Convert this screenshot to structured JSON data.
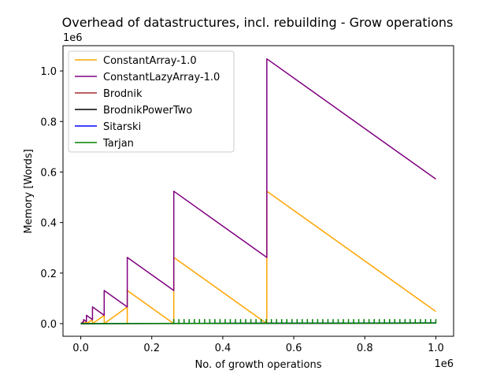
{
  "chart_data": {
    "type": "line",
    "title": "Overhead of datastructures, incl. rebuilding - Grow operations",
    "xlabel": "No. of growth operations",
    "ylabel": "Memory [Words]",
    "x_offset_label": "1e6",
    "y_offset_label": "1e6",
    "xlim": [
      -0.05,
      1.05
    ],
    "ylim": [
      -0.05,
      1.1
    ],
    "x_ticks": [
      0.0,
      0.2,
      0.4,
      0.6,
      0.8,
      1.0
    ],
    "x_tick_labels": [
      "0.0",
      "0.2",
      "0.4",
      "0.6",
      "0.8",
      "1.0"
    ],
    "y_ticks": [
      0.0,
      0.2,
      0.4,
      0.6,
      0.8,
      1.0
    ],
    "y_tick_labels": [
      "0.0",
      "0.2",
      "0.4",
      "0.6",
      "0.8",
      "1.0"
    ],
    "grid": false,
    "legend_position": "upper-left",
    "series": [
      {
        "name": "ConstantArray-1.0",
        "color": "#ffa500",
        "points": [
          [
            0,
            0
          ],
          [
            0.008,
            0.008
          ],
          [
            0.008,
            0
          ],
          [
            0.016,
            0.008
          ],
          [
            0.016,
            0
          ],
          [
            0.033,
            0.016
          ],
          [
            0.033,
            0
          ],
          [
            0.066,
            0.033
          ],
          [
            0.066,
            0
          ],
          [
            0.131,
            0.066
          ],
          [
            0.131,
            0
          ],
          [
            0.131,
            0.131
          ],
          [
            0.262,
            0.0
          ],
          [
            0.262,
            0.262
          ],
          [
            0.524,
            0.0
          ],
          [
            0.524,
            0.524
          ],
          [
            1.0,
            0.048
          ]
        ]
      },
      {
        "name": "ConstantLazyArray-1.0",
        "color": "#800080",
        "points": [
          [
            0,
            0
          ],
          [
            0.008,
            0.008
          ],
          [
            0.008,
            0.016
          ],
          [
            0.016,
            0.008
          ],
          [
            0.016,
            0.033
          ],
          [
            0.033,
            0.016
          ],
          [
            0.033,
            0.066
          ],
          [
            0.066,
            0.033
          ],
          [
            0.066,
            0.131
          ],
          [
            0.131,
            0.066
          ],
          [
            0.131,
            0.262
          ],
          [
            0.262,
            0.131
          ],
          [
            0.262,
            0.524
          ],
          [
            0.524,
            0.262
          ],
          [
            0.524,
            1.048
          ],
          [
            1.0,
            0.572
          ]
        ]
      },
      {
        "name": "Brodnik",
        "color": "#a52a2a",
        "points": [
          [
            0,
            0
          ],
          [
            1.0,
            0.002
          ]
        ]
      },
      {
        "name": "BrodnikPowerTwo",
        "color": "#000000",
        "points": [
          [
            0,
            0
          ],
          [
            1.0,
            0.002
          ]
        ]
      },
      {
        "name": "Sitarski",
        "color": "#0000ff",
        "points": [
          [
            0,
            0
          ],
          [
            1.0,
            0.003
          ]
        ]
      },
      {
        "name": "Tarjan",
        "color": "#008000",
        "points": [
          [
            0,
            0
          ],
          [
            1.0,
            0.002
          ]
        ],
        "spikes": {
          "x_start": 0.262,
          "x_end": 1.0,
          "count": 52,
          "height": 0.018
        }
      }
    ]
  }
}
